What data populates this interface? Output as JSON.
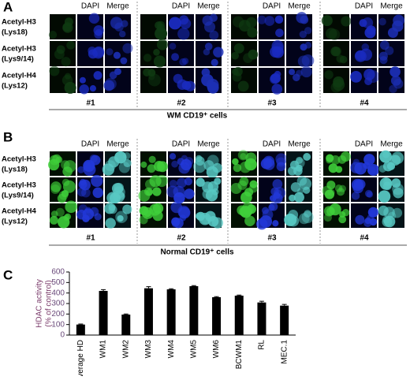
{
  "panels": [
    {
      "label": "A",
      "row_labels": [
        [
          "Acetyl-H3",
          "(Lys18)"
        ],
        [
          "Acetyl-H3",
          "(Lys9/14)"
        ],
        [
          "Acetyl-H4",
          "(Lys12)"
        ]
      ],
      "headers": [
        "DAPI",
        "Merge"
      ],
      "groups": [
        "#1",
        "#2",
        "#3",
        "#4"
      ],
      "caption": "WM CD19⁺ cells"
    },
    {
      "label": "B",
      "row_labels": [
        [
          "Acetyl-H3",
          "(Lys18)"
        ],
        [
          "Acetyl-H3",
          "(Lys9/14)"
        ],
        [
          "Acetyl-H4",
          "(Lys12)"
        ]
      ],
      "headers": [
        "DAPI",
        "Merge"
      ],
      "groups": [
        "#1",
        "#2",
        "#3",
        "#4"
      ],
      "caption": "Normal CD19⁺ cells"
    }
  ],
  "chart_data": {
    "type": "bar",
    "label": "C",
    "y_label": [
      "HDAC activity",
      "(% of control)"
    ],
    "categories": [
      "average HD",
      "WM1",
      "WM2",
      "WM3",
      "WM4",
      "WM5",
      "WM6",
      "BCWM1",
      "RL",
      "MEC.1"
    ],
    "values": [
      100,
      420,
      195,
      445,
      435,
      465,
      360,
      375,
      310,
      280
    ],
    "errors": [
      5,
      12,
      6,
      15,
      6,
      6,
      6,
      6,
      12,
      12
    ],
    "color": "#000000",
    "ylim": [
      0,
      600
    ],
    "yticks": [
      0,
      100,
      200,
      300,
      400,
      500,
      600
    ]
  }
}
